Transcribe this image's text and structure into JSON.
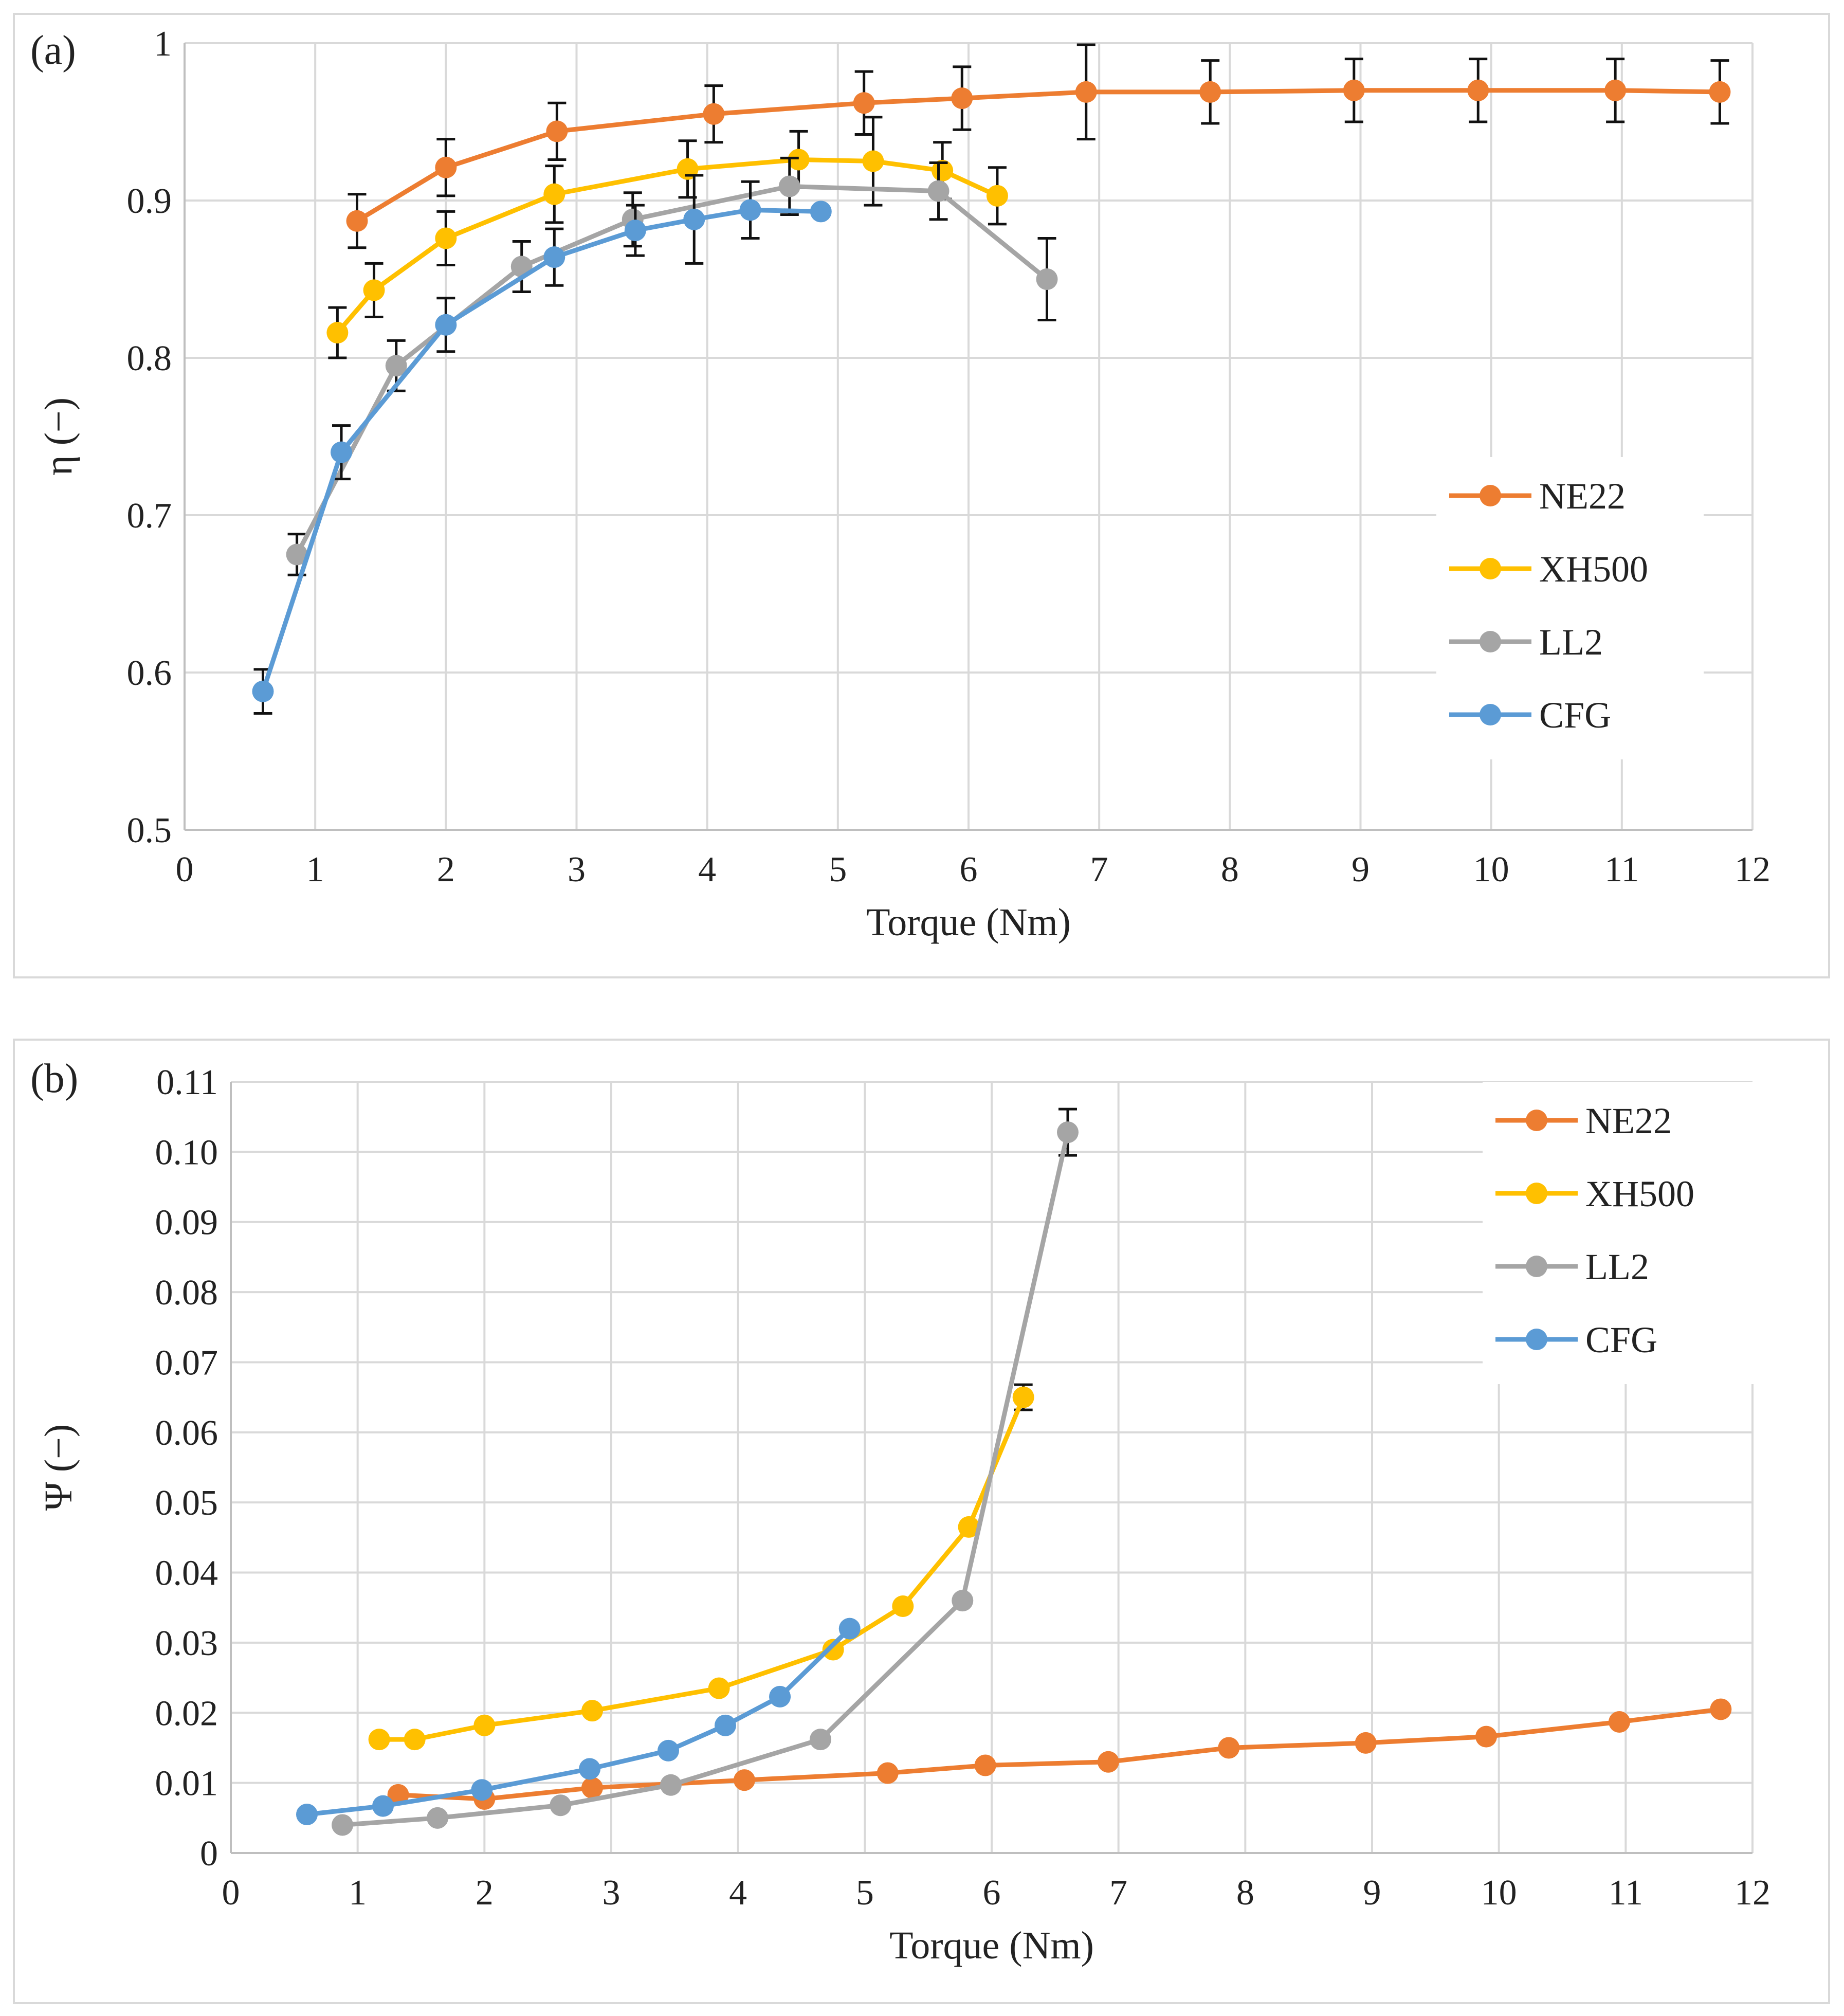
{
  "colors": {
    "NE22": "#ed7d31",
    "XH500": "#ffc000",
    "LL2": "#a5a5a5",
    "CFG": "#5b9bd5"
  },
  "chart_data": [
    {
      "id": "a",
      "type": "line",
      "panel_label": "(a)",
      "xlabel": "Torque (Nm)",
      "ylabel": "η (−)",
      "xlim": [
        0,
        12
      ],
      "ylim": [
        0.5,
        1
      ],
      "xticks": [
        "0",
        "1",
        "2",
        "3",
        "4",
        "5",
        "6",
        "7",
        "8",
        "9",
        "10",
        "11",
        "12"
      ],
      "yticks": [
        "0.5",
        "0.6",
        "0.7",
        "0.8",
        "0.9",
        "1"
      ],
      "legend_position": "middle-right",
      "series": [
        {
          "name": "NE22",
          "x": [
            1.32,
            2.0,
            2.85,
            4.05,
            5.2,
            5.95,
            6.9,
            7.85,
            8.95,
            9.9,
            10.95,
            11.75
          ],
          "y": [
            0.887,
            0.921,
            0.944,
            0.955,
            0.962,
            0.965,
            0.969,
            0.969,
            0.97,
            0.97,
            0.97,
            0.969
          ],
          "err": [
            0.017,
            0.018,
            0.018,
            0.018,
            0.02,
            0.02,
            0.03,
            0.02,
            0.02,
            0.02,
            0.02,
            0.02
          ]
        },
        {
          "name": "XH500",
          "x": [
            1.17,
            1.45,
            2.0,
            2.83,
            3.85,
            4.7,
            5.27,
            5.8,
            6.22
          ],
          "y": [
            0.816,
            0.843,
            0.876,
            0.904,
            0.92,
            0.926,
            0.925,
            0.919,
            0.903
          ],
          "err": [
            0.016,
            0.017,
            0.017,
            0.018,
            0.018,
            0.018,
            0.028,
            0.018,
            0.018
          ]
        },
        {
          "name": "LL2",
          "x": [
            0.86,
            1.62,
            2.58,
            3.43,
            4.63,
            5.77,
            6.6
          ],
          "y": [
            0.675,
            0.795,
            0.858,
            0.888,
            0.909,
            0.906,
            0.85
          ],
          "err": [
            0.013,
            0.016,
            0.016,
            0.017,
            0.018,
            0.018,
            0.026
          ]
        },
        {
          "name": "CFG",
          "x": [
            0.6,
            1.2,
            2.0,
            2.83,
            3.45,
            3.9,
            4.33,
            4.87
          ],
          "y": [
            0.588,
            0.74,
            0.821,
            0.864,
            0.881,
            0.888,
            0.894,
            0.893
          ],
          "err": [
            0.014,
            0.017,
            0.017,
            0.018,
            0.016,
            0.028,
            0.018,
            0.0
          ]
        }
      ]
    },
    {
      "id": "b",
      "type": "line",
      "panel_label": "(b)",
      "xlabel": "Torque (Nm)",
      "ylabel": "Ψ (−)",
      "xlim": [
        0,
        12
      ],
      "ylim": [
        0,
        0.11
      ],
      "xticks": [
        "0",
        "1",
        "2",
        "3",
        "4",
        "5",
        "6",
        "7",
        "8",
        "9",
        "10",
        "11",
        "12"
      ],
      "yticks": [
        "0",
        "0.01",
        "0.02",
        "0.03",
        "0.04",
        "0.05",
        "0.06",
        "0.07",
        "0.08",
        "0.09",
        "0.10",
        "0.11"
      ],
      "legend_position": "top-right",
      "series": [
        {
          "name": "NE22",
          "x": [
            1.32,
            2.0,
            2.85,
            4.05,
            5.18,
            5.95,
            6.92,
            7.87,
            8.95,
            9.9,
            10.95,
            11.75
          ],
          "y": [
            0.0083,
            0.0077,
            0.0093,
            0.0104,
            0.0114,
            0.0125,
            0.013,
            0.015,
            0.0157,
            0.0166,
            0.0187,
            0.0205
          ],
          "err": []
        },
        {
          "name": "XH500",
          "x": [
            1.17,
            1.45,
            2.0,
            2.85,
            3.85,
            4.75,
            5.3,
            5.82,
            6.25
          ],
          "y": [
            0.0162,
            0.0162,
            0.0182,
            0.0203,
            0.0235,
            0.029,
            0.0352,
            0.0465,
            0.065
          ],
          "err": [
            0,
            0,
            0,
            0,
            0,
            0,
            0,
            0,
            0.0018
          ]
        },
        {
          "name": "LL2",
          "x": [
            0.88,
            1.63,
            2.6,
            3.47,
            4.65,
            5.77,
            6.6
          ],
          "y": [
            0.004,
            0.005,
            0.0068,
            0.0097,
            0.0162,
            0.036,
            0.1028
          ],
          "err": [
            0,
            0,
            0,
            0,
            0,
            0,
            0.0033
          ]
        },
        {
          "name": "CFG",
          "x": [
            0.6,
            1.2,
            1.98,
            2.83,
            3.45,
            3.9,
            4.33,
            4.88
          ],
          "y": [
            0.0055,
            0.0067,
            0.009,
            0.012,
            0.0146,
            0.0182,
            0.0223,
            0.032
          ],
          "err": []
        }
      ]
    }
  ]
}
